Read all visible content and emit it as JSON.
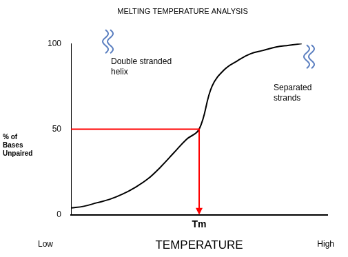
{
  "chart_data": {
    "type": "line",
    "title": "MELTING TEMPERATURE ANALYSIS",
    "x_label": "TEMPERATURE",
    "y_label": "% of Bases Unpaired",
    "x_end_labels": [
      "Low",
      "High"
    ],
    "annotations": [
      "Double stranded helix",
      "Separated strands"
    ],
    "categories": [
      null,
      null,
      null,
      null,
      null,
      null,
      null,
      null,
      null,
      null,
      "Tm",
      null,
      null,
      null,
      null,
      null,
      null,
      null,
      null,
      null,
      null
    ],
    "values": [
      4,
      5,
      7,
      9,
      12,
      16,
      21,
      28,
      36,
      44,
      50,
      75,
      85,
      90,
      94,
      96,
      98,
      99,
      100,
      null,
      null
    ],
    "color": "#000000",
    "ylim": [
      0,
      100
    ],
    "yticks": [
      0,
      50,
      100
    ],
    "grid": false,
    "reference": {
      "category": "Tm",
      "value": 50,
      "color": "#ff0000"
    }
  }
}
